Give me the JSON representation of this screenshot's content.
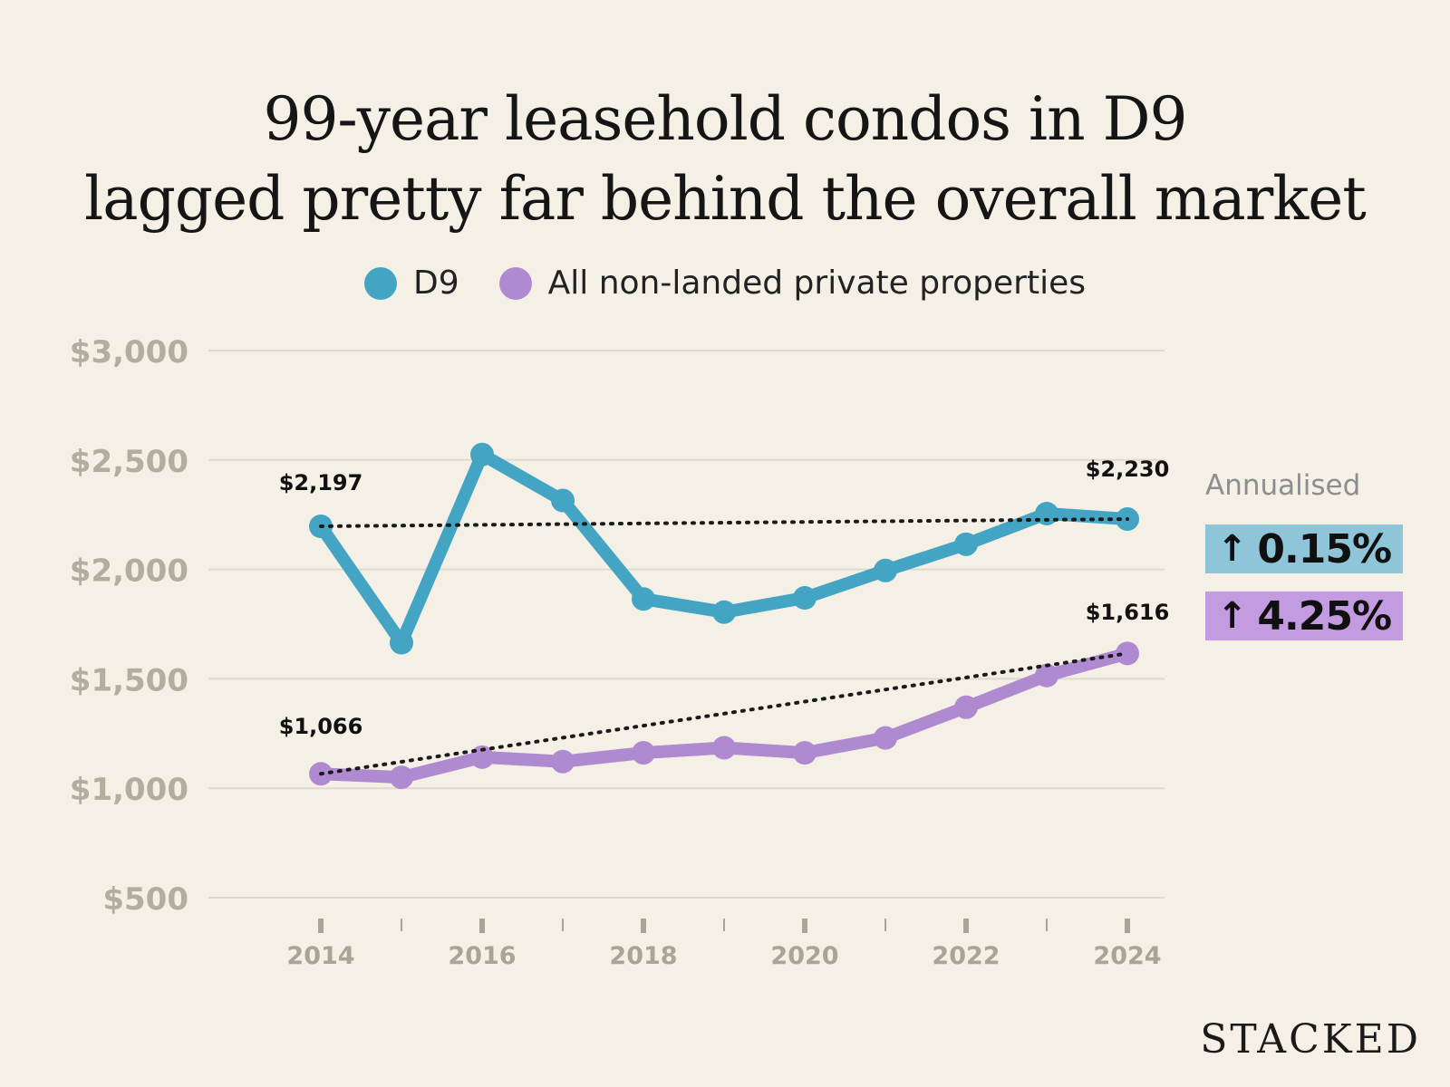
{
  "header": {
    "title_line1": "99-year leasehold condos in D9",
    "title_line2": "lagged pretty far behind the overall market"
  },
  "legend": [
    {
      "label": "D9",
      "color": "#43a4c4"
    },
    {
      "label": "All non-landed private properties",
      "color": "#b08ad0"
    }
  ],
  "annualised": {
    "label": "Annualised",
    "items": [
      {
        "arrow": "↑",
        "value": "0.15%",
        "color": "#8ec5d8"
      },
      {
        "arrow": "↑",
        "value": "4.25%",
        "color": "#c39be0"
      }
    ]
  },
  "brand": "STACKED",
  "chart_data": {
    "type": "line",
    "title": "99-year leasehold condos in D9 lagged pretty far behind the overall market",
    "x": [
      2014,
      2015,
      2016,
      2017,
      2018,
      2019,
      2020,
      2021,
      2022,
      2023,
      2024
    ],
    "x_tick_labels": [
      "2014",
      "2016",
      "2018",
      "2020",
      "2022",
      "2024"
    ],
    "y_tick_labels": [
      "$3,000",
      "$2,500",
      "$2,000",
      "$1,500",
      "$1,000",
      "$500"
    ],
    "y_ticks": [
      3000,
      2500,
      2000,
      1500,
      1000,
      500
    ],
    "ylim": [
      500,
      3000
    ],
    "grid": true,
    "series": [
      {
        "name": "D9",
        "color": "#43a4c4",
        "values": [
          2197,
          1665,
          2525,
          2315,
          1865,
          1805,
          1870,
          1995,
          2115,
          2255,
          2230
        ],
        "trend": [
          2197,
          2230
        ],
        "start_label": "$2,197",
        "end_label": "$2,230"
      },
      {
        "name": "All non-landed private properties",
        "color": "#b08ad0",
        "values": [
          1066,
          1050,
          1142,
          1122,
          1162,
          1185,
          1162,
          1230,
          1370,
          1515,
          1616
        ],
        "trend": [
          1066,
          1616
        ],
        "start_label": "$1,066",
        "end_label": "$1,616"
      }
    ]
  }
}
